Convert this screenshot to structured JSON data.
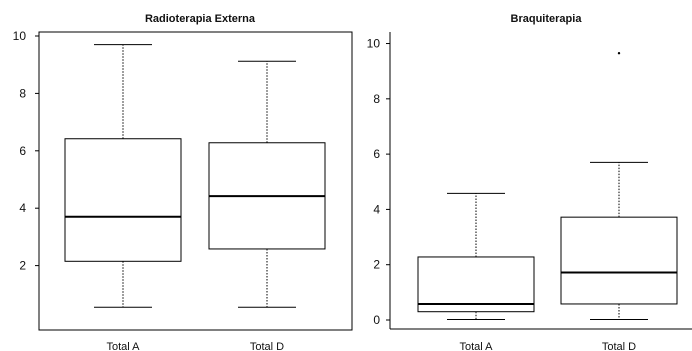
{
  "chart_data": [
    {
      "type": "box",
      "title": "Radioterapia Externa",
      "xlabel": "",
      "ylabel": "",
      "ylim": [
        0,
        10
      ],
      "yticks": [
        2,
        4,
        6,
        8,
        10
      ],
      "categories": [
        "Total A",
        "Total D"
      ],
      "boxes": [
        {
          "category": "Total A",
          "whisker_low": 0.55,
          "q1": 2.15,
          "median": 3.7,
          "q3": 6.42,
          "whisker_high": 9.7,
          "outliers": []
        },
        {
          "category": "Total D",
          "whisker_low": 0.55,
          "q1": 2.58,
          "median": 4.42,
          "q3": 6.28,
          "whisker_high": 9.12,
          "outliers": []
        }
      ],
      "grid": false,
      "background": "#ffffff",
      "line_color": "#000000"
    },
    {
      "type": "box",
      "title": "Braquiterapia",
      "xlabel": "",
      "ylabel": "",
      "ylim": [
        0,
        10.2
      ],
      "yticks": [
        0,
        2,
        4,
        6,
        8,
        10
      ],
      "categories": [
        "Total A",
        "Total D"
      ],
      "boxes": [
        {
          "category": "Total A",
          "whisker_low": 0.02,
          "q1": 0.3,
          "median": 0.58,
          "q3": 2.28,
          "whisker_high": 4.58,
          "outliers": []
        },
        {
          "category": "Total D",
          "whisker_low": 0.02,
          "q1": 0.58,
          "median": 1.72,
          "q3": 3.72,
          "whisker_high": 5.7,
          "outliers": [
            9.65
          ]
        }
      ],
      "grid": false,
      "background": "#ffffff",
      "line_color": "#000000"
    }
  ],
  "page": {
    "background": "#fbe6d8"
  }
}
